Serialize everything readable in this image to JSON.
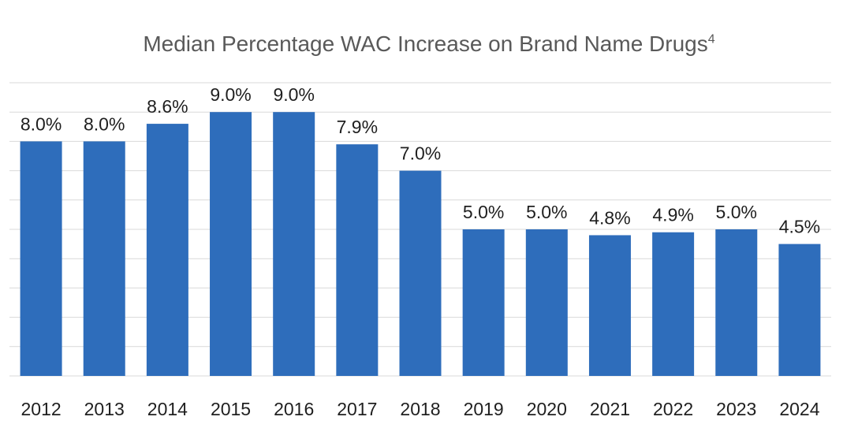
{
  "chart_data": {
    "type": "bar",
    "title": "Median Percentage WAC Increase on Brand Name Drugs",
    "title_superscript": "4",
    "categories": [
      "2012",
      "2013",
      "2014",
      "2015",
      "2016",
      "2017",
      "2018",
      "2019",
      "2020",
      "2021",
      "2022",
      "2023",
      "2024"
    ],
    "values": [
      8.0,
      8.0,
      8.6,
      9.0,
      9.0,
      7.9,
      7.0,
      5.0,
      5.0,
      4.8,
      4.9,
      5.0,
      4.5
    ],
    "data_labels": [
      "8.0%",
      "8.0%",
      "8.6%",
      "9.0%",
      "9.0%",
      "7.9%",
      "7.0%",
      "5.0%",
      "5.0%",
      "4.8%",
      "4.9%",
      "5.0%",
      "4.5%"
    ],
    "xlabel": "",
    "ylabel": "",
    "ylim": [
      0,
      10
    ],
    "grid": true,
    "bar_color": "#2e6dbb"
  }
}
